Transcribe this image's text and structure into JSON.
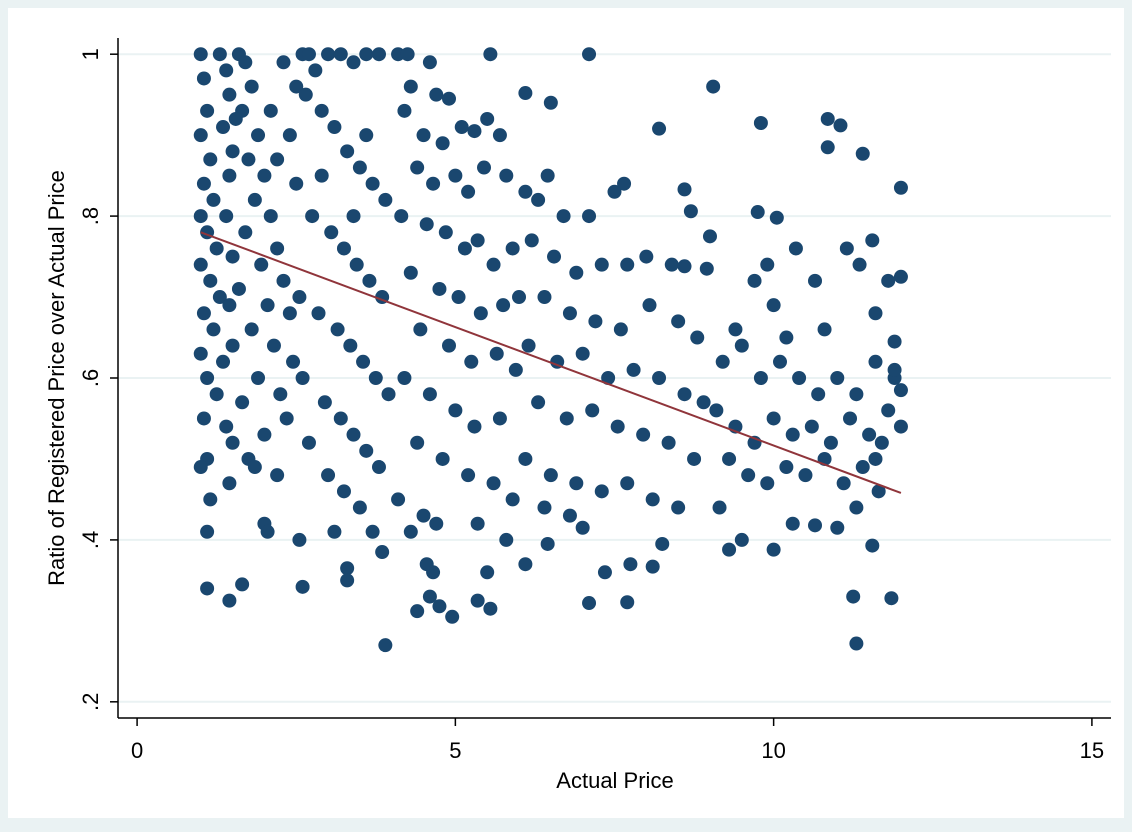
{
  "chart_data": {
    "type": "scatter",
    "x_label": "Actual Price",
    "y_label": "Ratio of Registered Price over Actual Price",
    "xlim": [
      -0.3,
      15.3
    ],
    "ylim": [
      0.18,
      1.02
    ],
    "xticks": [
      0,
      5,
      10,
      15
    ],
    "yticks": [
      {
        "value": 0.2,
        "label": ".2"
      },
      {
        "value": 0.4,
        "label": ".4"
      },
      {
        "value": 0.6,
        "label": ".6"
      },
      {
        "value": 0.8,
        "label": ".8"
      },
      1
    ],
    "grid": true,
    "series": [
      {
        "type": "scatter",
        "color": "#1a476f",
        "x": [
          1.0,
          1.05,
          1.1,
          1.0,
          1.15,
          1.05,
          1.2,
          1.0,
          1.1,
          1.25,
          1.0,
          1.15,
          1.3,
          1.05,
          1.2,
          1.0,
          1.35,
          1.1,
          1.25,
          1.05,
          1.4,
          1.1,
          1.0,
          1.15,
          1.1,
          1.3,
          1.4,
          1.45,
          1.35,
          1.5,
          1.45,
          1.4,
          1.5,
          1.45,
          1.5,
          1.5,
          1.45,
          1.6,
          1.7,
          1.8,
          1.65,
          1.9,
          1.75,
          2.0,
          1.85,
          2.1,
          1.7,
          2.2,
          1.95,
          2.3,
          1.6,
          2.05,
          2.4,
          1.8,
          2.15,
          2.45,
          1.9,
          2.25,
          1.65,
          2.35,
          2.0,
          1.75,
          2.2,
          1.85,
          2.0,
          2.05,
          2.5,
          2.3,
          2.1,
          2.4,
          2.2,
          2.5,
          1.55,
          2.6,
          2.7,
          2.8,
          3.0,
          3.2,
          3.4,
          3.6,
          3.8,
          2.65,
          2.9,
          3.1,
          3.3,
          3.5,
          3.7,
          3.9,
          2.75,
          3.05,
          3.25,
          3.45,
          3.65,
          3.85,
          2.55,
          2.85,
          3.15,
          3.35,
          3.55,
          3.75,
          3.95,
          2.6,
          2.95,
          3.2,
          3.4,
          3.6,
          3.8,
          2.7,
          3.0,
          3.25,
          3.5,
          2.55,
          3.7,
          3.85,
          3.3,
          3.1,
          3.6,
          2.9,
          3.4,
          4.1,
          4.25,
          4.6,
          4.3,
          4.7,
          4.9,
          4.2,
          4.5,
          4.8,
          5.1,
          5.3,
          5.5,
          5.7,
          4.4,
          4.65,
          5.0,
          5.2,
          5.45,
          5.8,
          4.15,
          4.55,
          4.85,
          5.15,
          5.35,
          5.6,
          5.9,
          4.3,
          4.75,
          5.05,
          5.4,
          5.75,
          4.45,
          4.9,
          5.25,
          5.65,
          5.95,
          4.2,
          4.6,
          5.0,
          5.3,
          5.7,
          4.4,
          4.8,
          5.2,
          5.6,
          5.9,
          4.1,
          4.5,
          4.3,
          4.7,
          5.35,
          5.8,
          5.5,
          4.55,
          4.65,
          6.1,
          6.3,
          6.45,
          6.7,
          7.1,
          7.5,
          7.65,
          6.2,
          6.55,
          6.9,
          7.3,
          7.7,
          8.0,
          8.4,
          6.0,
          6.4,
          6.8,
          7.2,
          7.6,
          8.05,
          8.5,
          8.8,
          6.15,
          6.6,
          7.0,
          7.4,
          7.8,
          8.2,
          8.6,
          8.9,
          6.3,
          6.75,
          7.15,
          7.55,
          7.95,
          8.35,
          8.75,
          6.1,
          6.5,
          6.9,
          7.3,
          7.7,
          8.1,
          8.5,
          6.4,
          6.8,
          7.0,
          7.75,
          8.1,
          6.1,
          6.45,
          7.35,
          8.25,
          8.6,
          8.95,
          9.0,
          9.2,
          9.5,
          9.8,
          10.1,
          10.4,
          10.7,
          11.0,
          11.3,
          11.6,
          11.9,
          9.1,
          9.4,
          9.7,
          10.0,
          10.3,
          10.6,
          10.9,
          11.2,
          11.5,
          11.8,
          9.3,
          9.6,
          9.9,
          10.2,
          10.5,
          10.8,
          11.1,
          11.4,
          11.7,
          9.15,
          9.5,
          10.3,
          10.65,
          11.0,
          11.3,
          9.7,
          10.0,
          10.35,
          10.65,
          11.15,
          11.35,
          11.55,
          12.0,
          11.6,
          10.2,
          10.8,
          9.4,
          9.9,
          11.9,
          12.0,
          1.1,
          1.45,
          1.65,
          2.6,
          3.3,
          3.9,
          4.4,
          4.6,
          4.75,
          4.95,
          5.35,
          5.55,
          7.1,
          7.7,
          11.3,
          11.25,
          11.85,
          7.1,
          5.55,
          9.05,
          9.8,
          10.85,
          11.05,
          11.4,
          12.0,
          11.55,
          6.5,
          6.1,
          8.2,
          10.0,
          9.3,
          8.6,
          8.7,
          10.05,
          9.75,
          10.85,
          11.8,
          12.0,
          11.9,
          11.6,
          11.65
        ],
        "values": [
          1.0,
          0.97,
          0.93,
          0.9,
          0.87,
          0.84,
          0.82,
          0.8,
          0.78,
          0.76,
          0.74,
          0.72,
          0.7,
          0.68,
          0.66,
          0.63,
          0.62,
          0.6,
          0.58,
          0.55,
          0.54,
          0.5,
          0.49,
          0.45,
          0.41,
          1.0,
          0.98,
          0.95,
          0.91,
          0.88,
          0.85,
          0.8,
          0.75,
          0.69,
          0.64,
          0.52,
          0.47,
          1.0,
          0.99,
          0.96,
          0.93,
          0.9,
          0.87,
          0.85,
          0.82,
          0.8,
          0.78,
          0.76,
          0.74,
          0.72,
          0.71,
          0.69,
          0.68,
          0.66,
          0.64,
          0.62,
          0.6,
          0.58,
          0.57,
          0.55,
          0.53,
          0.5,
          0.48,
          0.49,
          0.42,
          0.41,
          0.96,
          0.99,
          0.93,
          0.9,
          0.87,
          0.84,
          0.92,
          1.0,
          1.0,
          0.98,
          1.0,
          1.0,
          0.99,
          1.0,
          1.0,
          0.95,
          0.93,
          0.91,
          0.88,
          0.86,
          0.84,
          0.82,
          0.8,
          0.78,
          0.76,
          0.74,
          0.72,
          0.7,
          0.7,
          0.68,
          0.66,
          0.64,
          0.62,
          0.6,
          0.58,
          0.6,
          0.57,
          0.55,
          0.53,
          0.51,
          0.49,
          0.52,
          0.48,
          0.46,
          0.44,
          0.4,
          0.41,
          0.385,
          0.365,
          0.41,
          0.9,
          0.85,
          0.8,
          1.0,
          1.0,
          0.99,
          0.96,
          0.95,
          0.945,
          0.93,
          0.9,
          0.89,
          0.91,
          0.905,
          0.92,
          0.9,
          0.86,
          0.84,
          0.85,
          0.83,
          0.86,
          0.85,
          0.8,
          0.79,
          0.78,
          0.76,
          0.77,
          0.74,
          0.76,
          0.73,
          0.71,
          0.7,
          0.68,
          0.69,
          0.66,
          0.64,
          0.62,
          0.63,
          0.61,
          0.6,
          0.58,
          0.56,
          0.54,
          0.55,
          0.52,
          0.5,
          0.48,
          0.47,
          0.45,
          0.45,
          0.43,
          0.41,
          0.42,
          0.42,
          0.4,
          0.36,
          0.37,
          0.36,
          0.83,
          0.82,
          0.85,
          0.8,
          0.8,
          0.83,
          0.84,
          0.77,
          0.75,
          0.73,
          0.74,
          0.74,
          0.75,
          0.74,
          0.7,
          0.7,
          0.68,
          0.67,
          0.66,
          0.69,
          0.67,
          0.65,
          0.64,
          0.62,
          0.63,
          0.6,
          0.61,
          0.6,
          0.58,
          0.57,
          0.57,
          0.55,
          0.56,
          0.54,
          0.53,
          0.52,
          0.5,
          0.5,
          0.48,
          0.47,
          0.46,
          0.47,
          0.45,
          0.44,
          0.44,
          0.43,
          0.415,
          0.37,
          0.367,
          0.37,
          0.395,
          0.36,
          0.395,
          0.738,
          0.735,
          0.775,
          0.62,
          0.64,
          0.6,
          0.62,
          0.6,
          0.58,
          0.6,
          0.58,
          0.62,
          0.6,
          0.56,
          0.54,
          0.52,
          0.55,
          0.53,
          0.54,
          0.52,
          0.55,
          0.53,
          0.56,
          0.5,
          0.48,
          0.47,
          0.49,
          0.48,
          0.5,
          0.47,
          0.49,
          0.52,
          0.44,
          0.4,
          0.42,
          0.418,
          0.415,
          0.44,
          0.72,
          0.69,
          0.76,
          0.72,
          0.76,
          0.74,
          0.77,
          0.725,
          0.68,
          0.65,
          0.66,
          0.66,
          0.74,
          0.61,
          0.585,
          0.34,
          0.325,
          0.345,
          0.342,
          0.35,
          0.27,
          0.312,
          0.33,
          0.318,
          0.305,
          0.325,
          0.315,
          0.322,
          0.323,
          0.272,
          0.33,
          0.328,
          1.0,
          1.0,
          0.96,
          0.915,
          0.92,
          0.912,
          0.877,
          0.835,
          0.393,
          0.94,
          0.952,
          0.908,
          0.388,
          0.388,
          0.833,
          0.806,
          0.798,
          0.805,
          0.885,
          0.72,
          0.54,
          0.645,
          0.5,
          0.46
        ]
      },
      {
        "type": "line",
        "color": "#90353b",
        "x": [
          1,
          12
        ],
        "values": [
          0.78,
          0.458
        ]
      }
    ]
  }
}
